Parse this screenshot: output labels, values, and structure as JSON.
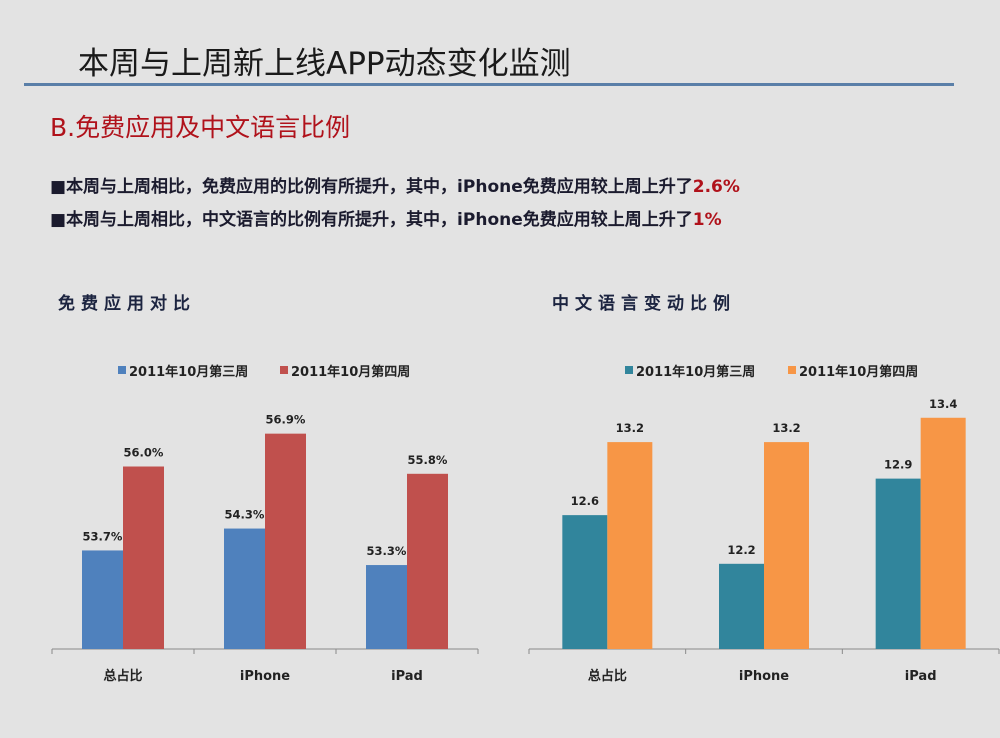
{
  "header": {
    "title": "本周与上周新上线APP动态变化监测",
    "subtitle": "B.免费应用及中文语言比例"
  },
  "bullets": [
    {
      "marker": "■",
      "text": "本周与上周相比，免费应用的比例有所提升，其中，iPhone免费应用较上周上升了",
      "highlight": "2.6%"
    },
    {
      "marker": "■",
      "text": "本周与上周相比，中文语言的比例有所提升，其中，iPhone免费应用较上周上升了",
      "highlight": "1%"
    }
  ],
  "chart_data": [
    {
      "type": "bar",
      "title": "免费应用对比",
      "categories": [
        "总占比",
        "iPhone",
        "iPad"
      ],
      "series": [
        {
          "name": "2011年10月第三周",
          "values": [
            53.7,
            54.3,
            53.3
          ],
          "labels": [
            "53.7%",
            "54.3%",
            "53.3%"
          ],
          "color": "#4F81BD"
        },
        {
          "name": "2011年10月第四周",
          "values": [
            56.0,
            56.9,
            55.8
          ],
          "labels": [
            "56.0%",
            "56.9%",
            "55.8%"
          ],
          "color": "#C0504D"
        }
      ],
      "ylim": [
        51,
        58
      ],
      "legend": "top",
      "grid": false
    },
    {
      "type": "bar",
      "title": "中文语言变动比例",
      "categories": [
        "总占比",
        "iPhone",
        "iPad"
      ],
      "series": [
        {
          "name": "2011年10月第三周",
          "values": [
            12.6,
            12.2,
            12.9
          ],
          "labels": [
            "12.6",
            "12.2",
            "12.9"
          ],
          "color": "#31859C"
        },
        {
          "name": "2011年10月第四周",
          "values": [
            13.2,
            13.2,
            13.4
          ],
          "labels": [
            "13.2",
            "13.2",
            "13.4"
          ],
          "color": "#F79646"
        }
      ],
      "ylim": [
        11.5,
        13.6
      ],
      "legend": "top",
      "grid": false
    }
  ]
}
